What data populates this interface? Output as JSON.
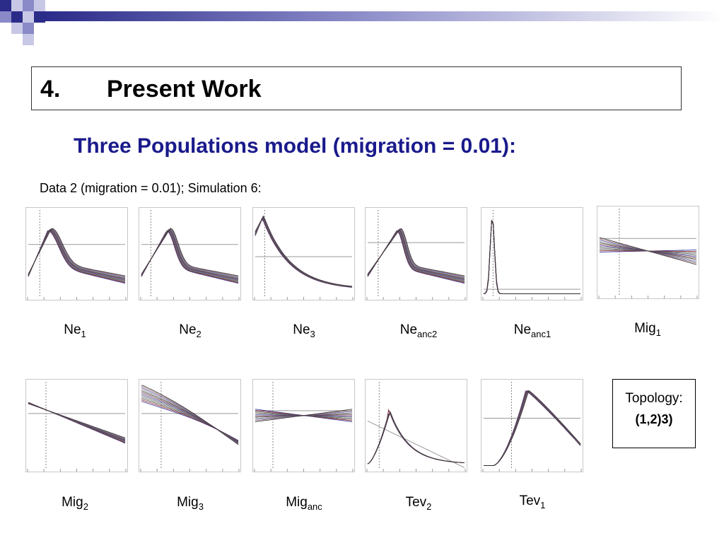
{
  "colors": {
    "accent": "#1a1a8c",
    "deco_dark": "#2b2b8a",
    "deco_mid": "#8a8ac8",
    "deco_light": "#c8c8e6"
  },
  "slide": {
    "section_number": "4.",
    "section_title": "Present Work",
    "subtitle": "Three Populations model (migration = 0.01):",
    "caption": "Data 2 (migration = 0.01); Simulation 6:"
  },
  "topology": {
    "label": "Topology:",
    "value": "(1,2)3)"
  },
  "chart_data": [
    {
      "type": "line",
      "label_base": "Ne",
      "label_sub": "1",
      "shape": "hump",
      "peak": 0.22,
      "spread": 0.25
    },
    {
      "type": "line",
      "label_base": "Ne",
      "label_sub": "2",
      "shape": "hump",
      "peak": 0.28,
      "spread": 0.18
    },
    {
      "type": "line",
      "label_base": "Ne",
      "label_sub": "3",
      "shape": "decay",
      "peak": 0.08,
      "spread": 0.1
    },
    {
      "type": "line",
      "label_base": "Ne",
      "label_sub": "anc2",
      "shape": "hump",
      "peak": 0.32,
      "spread": 0.15
    },
    {
      "type": "line",
      "label_base": "Ne",
      "label_sub": "anc1",
      "shape": "spike",
      "peak": 0.09,
      "spread": 0.05
    },
    {
      "type": "line",
      "label_base": "Mig",
      "label_sub": "1",
      "shape": "flat-down",
      "peak": 0.5,
      "spread": 0.3
    },
    {
      "type": "line",
      "label_base": "Mig",
      "label_sub": "2",
      "shape": "descend",
      "peak": 0.15,
      "spread": 0.2
    },
    {
      "type": "line",
      "label_base": "Mig",
      "label_sub": "3",
      "shape": "descend-steep",
      "peak": 0.1,
      "spread": 0.35
    },
    {
      "type": "line",
      "label_base": "Mig",
      "label_sub": "anc",
      "shape": "cross",
      "peak": 0.5,
      "spread": 0.3
    },
    {
      "type": "line",
      "label_base": "Tev",
      "label_sub": "2",
      "shape": "tev2",
      "peak": 0.22,
      "spread": 0.08
    },
    {
      "type": "line",
      "label_base": "Tev",
      "label_sub": "1",
      "shape": "tev1",
      "peak": 0.45,
      "spread": 0.1
    }
  ]
}
